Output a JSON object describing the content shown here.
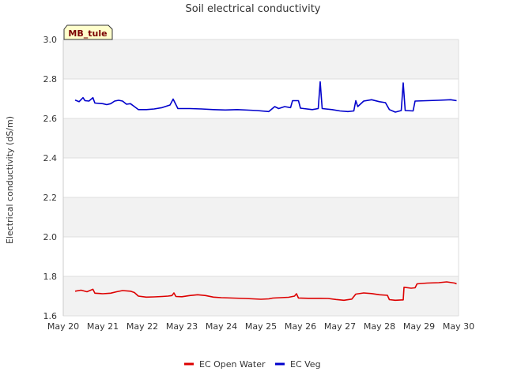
{
  "chart_data": {
    "type": "line",
    "title": "Soil electrical conductivity",
    "ylabel": "Electrical conductivity (dS/m)",
    "xlabel": "",
    "badge": "MB_tule",
    "ylim": [
      1.6,
      3.0
    ],
    "yticks": [
      "1.6",
      "1.8",
      "2.0",
      "2.2",
      "2.4",
      "2.6",
      "2.8",
      "3.0"
    ],
    "xlim": [
      0,
      10
    ],
    "xticks": [
      "May 20",
      "May 21",
      "May 22",
      "May 23",
      "May 24",
      "May 25",
      "May 26",
      "May 27",
      "May 28",
      "May 29",
      "May 30"
    ],
    "grid": true,
    "legend": "bottom-center",
    "series": [
      {
        "name": "EC Open Water",
        "color": "#dd0000",
        "points": [
          [
            0.3,
            1.725
          ],
          [
            0.45,
            1.73
          ],
          [
            0.6,
            1.722
          ],
          [
            0.75,
            1.735
          ],
          [
            0.8,
            1.715
          ],
          [
            1.0,
            1.712
          ],
          [
            1.2,
            1.715
          ],
          [
            1.35,
            1.722
          ],
          [
            1.5,
            1.728
          ],
          [
            1.7,
            1.725
          ],
          [
            1.8,
            1.718
          ],
          [
            1.9,
            1.7
          ],
          [
            2.1,
            1.695
          ],
          [
            2.3,
            1.696
          ],
          [
            2.5,
            1.698
          ],
          [
            2.65,
            1.7
          ],
          [
            2.75,
            1.703
          ],
          [
            2.8,
            1.716
          ],
          [
            2.85,
            1.698
          ],
          [
            3.0,
            1.697
          ],
          [
            3.2,
            1.703
          ],
          [
            3.4,
            1.707
          ],
          [
            3.6,
            1.703
          ],
          [
            3.8,
            1.695
          ],
          [
            4.0,
            1.692
          ],
          [
            4.3,
            1.69
          ],
          [
            4.6,
            1.688
          ],
          [
            4.8,
            1.686
          ],
          [
            5.0,
            1.684
          ],
          [
            5.2,
            1.686
          ],
          [
            5.3,
            1.69
          ],
          [
            5.5,
            1.692
          ],
          [
            5.7,
            1.694
          ],
          [
            5.85,
            1.7
          ],
          [
            5.9,
            1.712
          ],
          [
            5.95,
            1.69
          ],
          [
            6.2,
            1.689
          ],
          [
            6.5,
            1.689
          ],
          [
            6.7,
            1.688
          ],
          [
            6.9,
            1.683
          ],
          [
            7.1,
            1.679
          ],
          [
            7.3,
            1.685
          ],
          [
            7.4,
            1.71
          ],
          [
            7.6,
            1.716
          ],
          [
            7.8,
            1.713
          ],
          [
            8.0,
            1.707
          ],
          [
            8.2,
            1.704
          ],
          [
            8.25,
            1.682
          ],
          [
            8.4,
            1.679
          ],
          [
            8.6,
            1.681
          ],
          [
            8.62,
            1.745
          ],
          [
            8.8,
            1.74
          ],
          [
            8.9,
            1.742
          ],
          [
            8.95,
            1.762
          ],
          [
            9.2,
            1.766
          ],
          [
            9.5,
            1.768
          ],
          [
            9.7,
            1.772
          ],
          [
            9.9,
            1.766
          ],
          [
            9.95,
            1.762
          ]
        ]
      },
      {
        "name": "EC Veg",
        "color": "#0000cc",
        "points": [
          [
            0.3,
            2.693
          ],
          [
            0.4,
            2.685
          ],
          [
            0.5,
            2.705
          ],
          [
            0.55,
            2.69
          ],
          [
            0.65,
            2.688
          ],
          [
            0.75,
            2.705
          ],
          [
            0.8,
            2.678
          ],
          [
            1.0,
            2.675
          ],
          [
            1.1,
            2.67
          ],
          [
            1.2,
            2.675
          ],
          [
            1.3,
            2.688
          ],
          [
            1.4,
            2.692
          ],
          [
            1.5,
            2.688
          ],
          [
            1.6,
            2.672
          ],
          [
            1.7,
            2.675
          ],
          [
            1.8,
            2.66
          ],
          [
            1.9,
            2.645
          ],
          [
            2.1,
            2.645
          ],
          [
            2.3,
            2.648
          ],
          [
            2.5,
            2.655
          ],
          [
            2.7,
            2.668
          ],
          [
            2.78,
            2.698
          ],
          [
            2.85,
            2.67
          ],
          [
            2.9,
            2.65
          ],
          [
            3.2,
            2.65
          ],
          [
            3.5,
            2.648
          ],
          [
            3.8,
            2.645
          ],
          [
            4.1,
            2.643
          ],
          [
            4.4,
            2.645
          ],
          [
            4.7,
            2.642
          ],
          [
            4.9,
            2.64
          ],
          [
            5.2,
            2.635
          ],
          [
            5.35,
            2.66
          ],
          [
            5.45,
            2.65
          ],
          [
            5.6,
            2.66
          ],
          [
            5.75,
            2.655
          ],
          [
            5.8,
            2.69
          ],
          [
            5.95,
            2.69
          ],
          [
            6.0,
            2.652
          ],
          [
            6.3,
            2.645
          ],
          [
            6.45,
            2.65
          ],
          [
            6.5,
            2.785
          ],
          [
            6.55,
            2.65
          ],
          [
            6.8,
            2.645
          ],
          [
            7.0,
            2.638
          ],
          [
            7.2,
            2.635
          ],
          [
            7.35,
            2.638
          ],
          [
            7.4,
            2.69
          ],
          [
            7.45,
            2.66
          ],
          [
            7.6,
            2.688
          ],
          [
            7.8,
            2.695
          ],
          [
            8.0,
            2.685
          ],
          [
            8.15,
            2.68
          ],
          [
            8.25,
            2.645
          ],
          [
            8.4,
            2.632
          ],
          [
            8.55,
            2.64
          ],
          [
            8.6,
            2.78
          ],
          [
            8.65,
            2.64
          ],
          [
            8.85,
            2.638
          ],
          [
            8.9,
            2.688
          ],
          [
            9.2,
            2.69
          ],
          [
            9.5,
            2.692
          ],
          [
            9.8,
            2.695
          ],
          [
            9.95,
            2.69
          ]
        ]
      }
    ]
  }
}
